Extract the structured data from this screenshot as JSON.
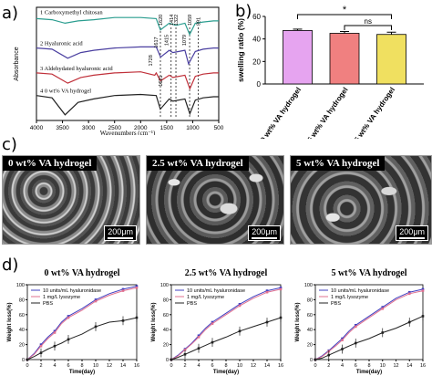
{
  "panels": {
    "a": "a)",
    "b": "b)",
    "c": "c)",
    "d": "d)"
  },
  "colors": {
    "pink": "#e6a4f0",
    "red": "#f08080",
    "yellow": "#f0e060",
    "blue": "#4040c0",
    "magenta": "#e07090",
    "black": "#222222",
    "teal": "#2a9d8f",
    "purple": "#4a3fa0",
    "crimson": "#c0303a"
  },
  "chart_data": [
    {
      "id": "ftir",
      "type": "line",
      "xlabel": "Wavenumbers (cm⁻¹)",
      "ylabel": "Absorbance",
      "x_ticks": [
        4000,
        3500,
        3000,
        2500,
        2000,
        1500,
        1000,
        500
      ],
      "xlim": [
        4000,
        500
      ],
      "series": [
        {
          "name": "1 Carboxymethyl chitosan",
          "color": "#2a9d8f",
          "x": [
            4000,
            3700,
            3450,
            3200,
            2900,
            2500,
            2000,
            1700,
            1620,
            1450,
            1320,
            1150,
            1059,
            950,
            800,
            600,
            500
          ],
          "y": [
            0.9,
            0.89,
            0.86,
            0.88,
            0.89,
            0.91,
            0.91,
            0.9,
            0.8,
            0.86,
            0.84,
            0.86,
            0.76,
            0.86,
            0.87,
            0.88,
            0.88
          ]
        },
        {
          "name": "2 Hyaluronic acid",
          "color": "#4a3fa0",
          "x": [
            4000,
            3700,
            3400,
            3150,
            2900,
            2500,
            2000,
            1700,
            1617,
            1450,
            1380,
            1150,
            1079,
            950,
            800,
            600,
            500
          ],
          "y": [
            0.64,
            0.63,
            0.55,
            0.6,
            0.62,
            0.64,
            0.65,
            0.65,
            0.56,
            0.62,
            0.6,
            0.62,
            0.5,
            0.61,
            0.63,
            0.64,
            0.64
          ]
        },
        {
          "name": "3 Aldehydated hyaluronic acid",
          "color": "#c0303a",
          "x": [
            4000,
            3700,
            3400,
            3150,
            2900,
            2500,
            2000,
            1728,
            1700,
            1617,
            1450,
            1380,
            1150,
            1055,
            950,
            800,
            600,
            500
          ],
          "y": [
            0.42,
            0.41,
            0.33,
            0.38,
            0.4,
            0.42,
            0.43,
            0.4,
            0.42,
            0.35,
            0.4,
            0.38,
            0.4,
            0.28,
            0.39,
            0.41,
            0.42,
            0.42
          ]
        },
        {
          "name": "4 0 wt% VA hydrogel",
          "color": "#222222",
          "x": [
            4000,
            3700,
            3450,
            3200,
            2900,
            2500,
            2000,
            1700,
            1621,
            1450,
            1380,
            1150,
            1055,
            950,
            800,
            600,
            500
          ],
          "y": [
            0.22,
            0.2,
            0.05,
            0.16,
            0.19,
            0.22,
            0.23,
            0.22,
            0.1,
            0.19,
            0.17,
            0.19,
            0.06,
            0.18,
            0.2,
            0.21,
            0.21
          ]
        }
      ],
      "peak_labels": [
        {
          "label": "1620",
          "x": 1620
        },
        {
          "label": "1414",
          "x": 1414
        },
        {
          "label": "1322",
          "x": 1322
        },
        {
          "label": "1059",
          "x": 1059
        },
        {
          "label": "891",
          "x": 891
        },
        {
          "label": "1728",
          "x": 1728
        },
        {
          "label": "1617",
          "x": 1617
        },
        {
          "label": "1415",
          "x": 1415
        },
        {
          "label": "1079",
          "x": 1079
        },
        {
          "label": "1621",
          "x": 1621
        }
      ]
    },
    {
      "id": "swelling",
      "type": "bar",
      "ylabel": "swelling ratio (%)",
      "ylim": [
        0,
        60
      ],
      "y_ticks": [
        0,
        20,
        40,
        60
      ],
      "categories": [
        "0 wt% VA hydrogel",
        "2.5 wt% VA hydrogel",
        "5 wt% VA hydrogel"
      ],
      "values": [
        47.5,
        45,
        44
      ],
      "errors": [
        1.2,
        1.6,
        2.0
      ],
      "bar_colors": [
        "#e6a4f0",
        "#f08080",
        "#f0e060"
      ],
      "significance": [
        {
          "from": 0,
          "to": 2,
          "label": "*"
        },
        {
          "from": 1,
          "to": 2,
          "label": "ns"
        }
      ]
    },
    {
      "id": "deg0",
      "type": "line",
      "title": "0 wt% VA hydrogel",
      "xlabel": "Time(day)",
      "ylabel": "Weight loss(%)",
      "xlim": [
        0,
        16
      ],
      "ylim": [
        0,
        100
      ],
      "x_ticks": [
        0,
        2,
        4,
        6,
        8,
        10,
        12,
        14,
        16
      ],
      "y_ticks": [
        0,
        20,
        40,
        60,
        80,
        100
      ],
      "x": [
        0,
        1,
        2,
        3,
        4,
        5,
        6,
        8,
        10,
        12,
        14,
        16
      ],
      "series": [
        {
          "name": "10 units/mL hyaluronidase",
          "color": "#4040c0",
          "values": [
            0,
            8,
            20,
            30,
            38,
            50,
            58,
            68,
            80,
            88,
            94,
            98
          ]
        },
        {
          "name": "1 mg/L lysozyme",
          "color": "#e07090",
          "values": [
            0,
            7,
            18,
            28,
            36,
            48,
            56,
            66,
            78,
            86,
            92,
            96
          ]
        },
        {
          "name": "PBS",
          "color": "#222222",
          "values": [
            0,
            4,
            9,
            14,
            18,
            22,
            27,
            34,
            44,
            50,
            52,
            56
          ]
        }
      ]
    },
    {
      "id": "deg25",
      "type": "line",
      "title": "2.5 wt% VA hydrogel",
      "xlabel": "Time(day)",
      "ylabel": "Weight loss(%)",
      "xlim": [
        0,
        16
      ],
      "ylim": [
        0,
        100
      ],
      "x_ticks": [
        0,
        2,
        4,
        6,
        8,
        10,
        12,
        14,
        16
      ],
      "y_ticks": [
        0,
        20,
        40,
        60,
        80,
        100
      ],
      "x": [
        0,
        1,
        2,
        3,
        4,
        5,
        6,
        8,
        10,
        12,
        14,
        16
      ],
      "series": [
        {
          "name": "10 units/mL hyaluronidase",
          "color": "#4040c0",
          "values": [
            0,
            6,
            14,
            22,
            32,
            42,
            50,
            62,
            74,
            84,
            92,
            96
          ]
        },
        {
          "name": "1 mg/L lysozyme",
          "color": "#e07090",
          "values": [
            0,
            5,
            13,
            21,
            30,
            40,
            48,
            60,
            72,
            82,
            90,
            94
          ]
        },
        {
          "name": "PBS",
          "color": "#222222",
          "values": [
            0,
            3,
            7,
            11,
            15,
            19,
            23,
            30,
            38,
            44,
            50,
            56
          ]
        }
      ]
    },
    {
      "id": "deg5",
      "type": "line",
      "title": "5 wt% VA hydrogel",
      "xlabel": "Time(day)",
      "ylabel": "Weight loss(%)",
      "xlim": [
        0,
        16
      ],
      "ylim": [
        0,
        100
      ],
      "x_ticks": [
        0,
        2,
        4,
        6,
        8,
        10,
        12,
        14,
        16
      ],
      "y_ticks": [
        0,
        20,
        40,
        60,
        80,
        100
      ],
      "x": [
        0,
        1,
        2,
        3,
        4,
        5,
        6,
        8,
        10,
        12,
        14,
        16
      ],
      "series": [
        {
          "name": "10 units/mL hyaluronidase",
          "color": "#4040c0",
          "values": [
            0,
            5,
            12,
            20,
            28,
            38,
            46,
            58,
            70,
            82,
            90,
            94
          ]
        },
        {
          "name": "1 mg/L lysozyme",
          "color": "#e07090",
          "values": [
            0,
            4,
            11,
            18,
            26,
            36,
            44,
            56,
            68,
            80,
            88,
            92
          ]
        },
        {
          "name": "PBS",
          "color": "#222222",
          "values": [
            0,
            2,
            6,
            10,
            14,
            18,
            22,
            28,
            36,
            42,
            50,
            58
          ]
        }
      ]
    }
  ],
  "sem": [
    {
      "title": "0 wt% VA hydrogel",
      "scale": "200μm"
    },
    {
      "title": "2.5 wt% VA hydrogel",
      "scale": "200μm"
    },
    {
      "title": "5 wt% VA hydrogel",
      "scale": "200μm"
    }
  ]
}
